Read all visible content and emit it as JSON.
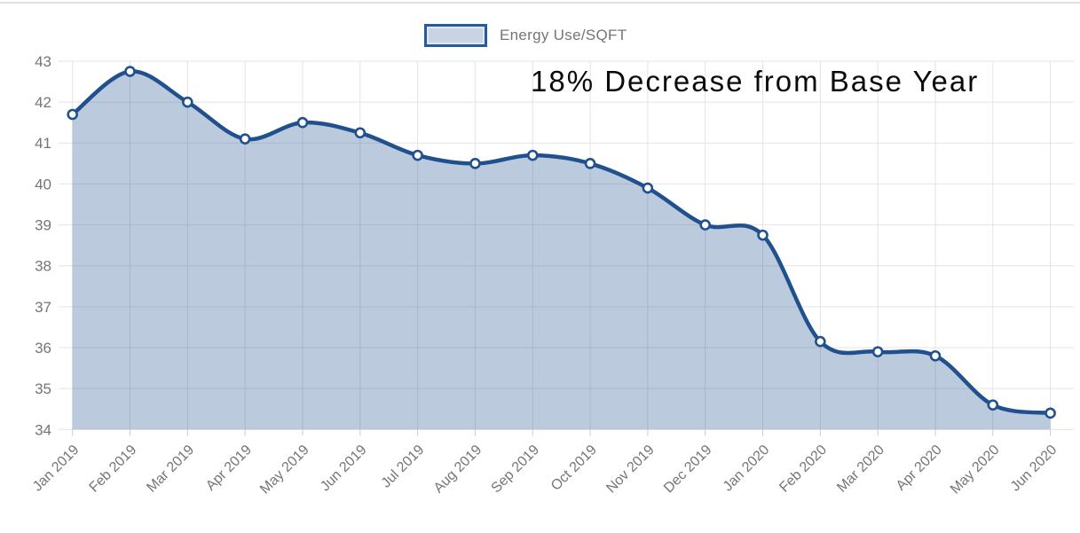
{
  "legend": {
    "label": "Energy Use/SQFT",
    "swatch_fill": "#c9d4e3",
    "swatch_border": "#255aa0"
  },
  "annotation": {
    "text": "18% Decrease from Base Year",
    "color": "#0a0a0a"
  },
  "chart_data": {
    "type": "area",
    "title": "",
    "xlabel": "",
    "ylabel": "",
    "categories": [
      "Jan 2019",
      "Feb 2019",
      "Mar 2019",
      "Apr 2019",
      "May 2019",
      "Jun 2019",
      "Jul 2019",
      "Aug 2019",
      "Sep 2019",
      "Oct 2019",
      "Nov 2019",
      "Dec 2019",
      "Jan 2020",
      "Feb 2020",
      "Mar 2020",
      "Apr 2020",
      "May 2020",
      "Jun 2020"
    ],
    "series": [
      {
        "name": "Energy Use/SQFT",
        "values": [
          41.7,
          42.75,
          42.0,
          41.1,
          41.5,
          41.25,
          40.7,
          40.5,
          40.7,
          40.5,
          39.9,
          39.0,
          38.75,
          36.15,
          35.9,
          35.8,
          34.6,
          34.4
        ]
      }
    ],
    "ylim": [
      34,
      43
    ],
    "y_ticks": [
      34,
      35,
      36,
      37,
      38,
      39,
      40,
      41,
      42,
      43
    ],
    "grid": true,
    "curve": "smooth",
    "marker": "circle-white",
    "legend_position": "top-center",
    "line_color": "#20518e",
    "fill_color": "rgba(32,81,142,0.30)",
    "grid_color": "#e4e4e4",
    "axis_text_color": "#757575",
    "annotation": "18% Decrease from Base Year"
  }
}
